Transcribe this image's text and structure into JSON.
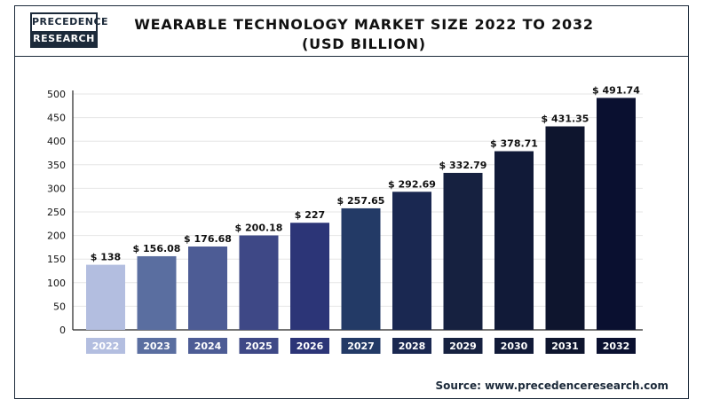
{
  "logo": {
    "line1": "PRECEDENCE",
    "line2": "RESEARCH"
  },
  "source": "Source: www.precedenceresearch.com",
  "chart_data": {
    "type": "bar",
    "title": "WEARABLE TECHNOLOGY MARKET SIZE 2022 TO 2032",
    "subtitle": "(USD BILLION)",
    "xlabel": "",
    "ylabel": "",
    "categories": [
      "2022",
      "2023",
      "2024",
      "2025",
      "2026",
      "2027",
      "2028",
      "2029",
      "2030",
      "2031",
      "2032"
    ],
    "values": [
      138,
      156.08,
      176.68,
      200.18,
      227,
      257.65,
      292.69,
      332.79,
      378.71,
      431.35,
      491.74
    ],
    "data_labels": [
      "$ 138",
      "$ 156.08",
      "$ 176.68",
      "$ 200.18",
      "$ 227",
      "$ 257.65",
      "$ 292.69",
      "$ 332.79",
      "$ 378.71",
      "$ 431.35",
      "$ 491.74"
    ],
    "yticks": [
      0,
      50,
      100,
      150,
      200,
      250,
      300,
      350,
      400,
      450,
      500
    ],
    "ylim": [
      0,
      500
    ],
    "grid": true,
    "legend": "none",
    "bar_colors": [
      "#b3bee0",
      "#5a6ea0",
      "#4d5c95",
      "#3e4886",
      "#2c3577",
      "#233a66",
      "#1a2851",
      "#162140",
      "#111a38",
      "#0e152e",
      "#0a1030"
    ]
  }
}
